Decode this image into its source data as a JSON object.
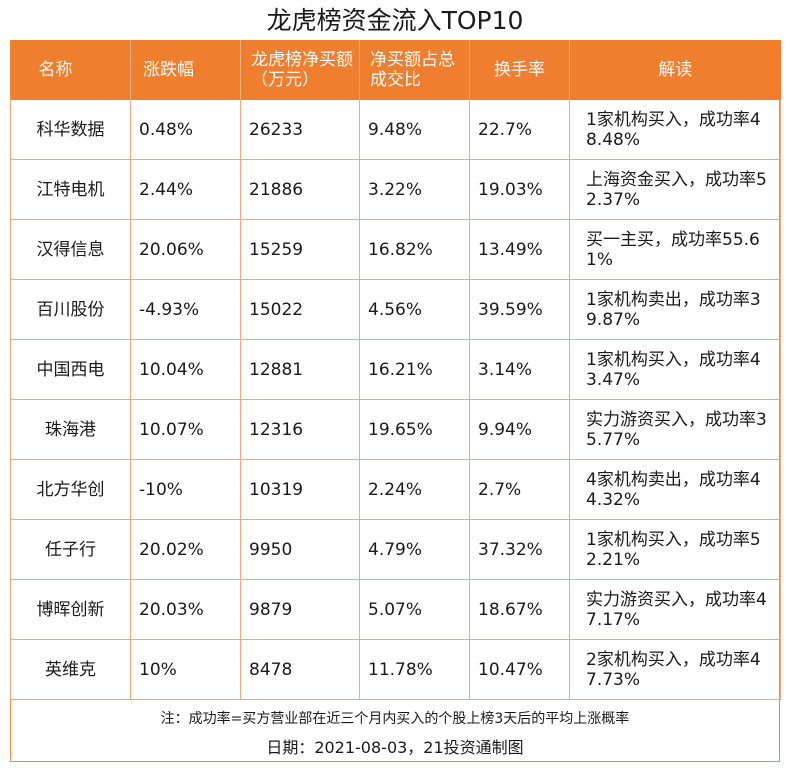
{
  "title": "龙虎榜资金流入TOP10",
  "headers": {
    "name": "名称",
    "change": "涨跌幅",
    "net_buy": "龙虎榜净买额（万元）",
    "net_buy_ratio": "净买额占总成交比",
    "turnover": "换手率",
    "comment": "解读"
  },
  "rows": [
    {
      "name": "科华数据",
      "change": "0.48%",
      "net_buy": "26233",
      "ratio": "9.48%",
      "turnover": "22.7%",
      "comment": "1家机构买入，成功率48.48%"
    },
    {
      "name": "江特电机",
      "change": "2.44%",
      "net_buy": "21886",
      "ratio": "3.22%",
      "turnover": "19.03%",
      "comment": "上海资金买入，成功率52.37%"
    },
    {
      "name": "汉得信息",
      "change": "20.06%",
      "net_buy": "15259",
      "ratio": "16.82%",
      "turnover": "13.49%",
      "comment": "买一主买，成功率55.61%"
    },
    {
      "name": "百川股份",
      "change": "-4.93%",
      "net_buy": "15022",
      "ratio": "4.56%",
      "turnover": "39.59%",
      "comment": "1家机构卖出，成功率39.87%"
    },
    {
      "name": "中国西电",
      "change": "10.04%",
      "net_buy": "12881",
      "ratio": "16.21%",
      "turnover": "3.14%",
      "comment": "1家机构买入，成功率43.47%"
    },
    {
      "name": "珠海港",
      "change": "10.07%",
      "net_buy": "12316",
      "ratio": "19.65%",
      "turnover": "9.94%",
      "comment": "实力游资买入，成功率35.77%"
    },
    {
      "name": "北方华创",
      "change": "-10%",
      "net_buy": "10319",
      "ratio": "2.24%",
      "turnover": "2.7%",
      "comment": "4家机构卖出，成功率44.32%"
    },
    {
      "name": "任子行",
      "change": "20.02%",
      "net_buy": "9950",
      "ratio": "4.79%",
      "turnover": "37.32%",
      "comment": "1家机构买入，成功率52.21%"
    },
    {
      "name": "博晖创新",
      "change": "20.03%",
      "net_buy": "9879",
      "ratio": "5.07%",
      "turnover": "18.67%",
      "comment": "实力游资买入，成功率47.17%"
    },
    {
      "name": "英维克",
      "change": "10%",
      "net_buy": "8478",
      "ratio": "11.78%",
      "turnover": "10.47%",
      "comment": "2家机构买入，成功率47.73%"
    }
  ],
  "note": "注：成功率=买方营业部在近三个月内买入的个股上榜3天后的平均上涨概率",
  "footer": "日期：2021-08-03，21投资通制图",
  "colors": {
    "header_bg": "#ef7e2e",
    "border": "#f0a878"
  }
}
